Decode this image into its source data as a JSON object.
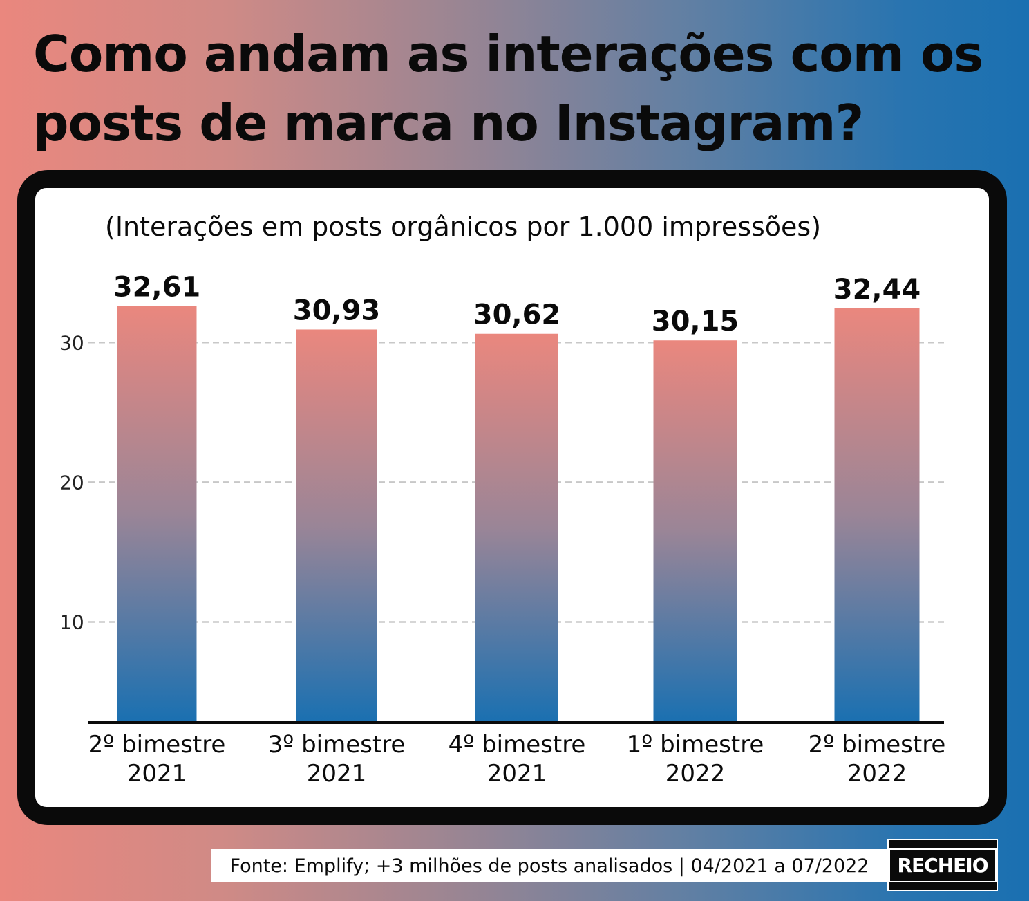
{
  "title": "Como andam as interações com os posts de marca no Instagram?",
  "source": "Fonte: Emplify; +3 milhões de posts analisados | 04/2021 a 07/2022",
  "logo": "RECHEIO",
  "colors": {
    "bar_top": "#ea877e",
    "bar_bottom": "#1a70b1",
    "grid": "#c8c8c8",
    "axis": "#0a0a0a"
  },
  "chart_data": {
    "type": "bar",
    "title": "(Interações em posts orgânicos por 1.000 impressões)",
    "categories": [
      [
        "2º bimestre",
        "2021"
      ],
      [
        "3º bimestre",
        "2021"
      ],
      [
        "4º bimestre",
        "2021"
      ],
      [
        "1º bimestre",
        "2022"
      ],
      [
        "2º bimestre",
        "2022"
      ]
    ],
    "values": [
      32.61,
      30.93,
      30.62,
      30.15,
      32.44
    ],
    "value_labels": [
      "32,61",
      "30,93",
      "30,62",
      "30,15",
      "32,44"
    ],
    "yticks": [
      "10",
      "20",
      "30"
    ],
    "ylim": [
      2.85,
      36
    ],
    "grid": true,
    "grid_style": "dashed",
    "legend": "none"
  }
}
